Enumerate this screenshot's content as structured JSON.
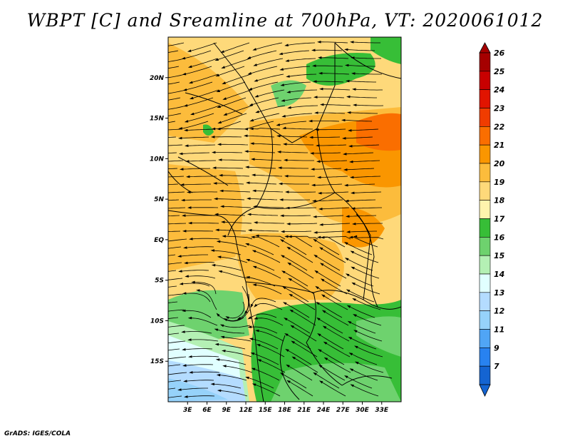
{
  "title": "WBPT [C] and Sreamline at 700hPa, VT: 2020061012",
  "credit": "GrADS: IGES/COLA",
  "map": {
    "lat_range": [
      -20,
      25
    ],
    "lon_range": [
      0,
      36
    ],
    "lat_ticks": [
      {
        "value": 20,
        "label": "20N"
      },
      {
        "value": 15,
        "label": "15N"
      },
      {
        "value": 10,
        "label": "10N"
      },
      {
        "value": 5,
        "label": "5N"
      },
      {
        "value": 0,
        "label": "EQ"
      },
      {
        "value": -5,
        "label": "5S"
      },
      {
        "value": -10,
        "label": "10S"
      },
      {
        "value": -15,
        "label": "15S"
      }
    ],
    "lon_ticks": [
      {
        "value": 3,
        "label": "3E"
      },
      {
        "value": 6,
        "label": "6E"
      },
      {
        "value": 9,
        "label": "9E"
      },
      {
        "value": 12,
        "label": "12E"
      },
      {
        "value": 15,
        "label": "15E"
      },
      {
        "value": 18,
        "label": "18E"
      },
      {
        "value": 21,
        "label": "21E"
      },
      {
        "value": 24,
        "label": "24E"
      },
      {
        "value": 27,
        "label": "27E"
      },
      {
        "value": 30,
        "label": "30E"
      },
      {
        "value": 33,
        "label": "33E"
      }
    ]
  },
  "colorbar": {
    "levels": [
      {
        "label": "26",
        "color": "#a50000"
      },
      {
        "label": "25",
        "color": "#c80000"
      },
      {
        "label": "24",
        "color": "#e11400"
      },
      {
        "label": "23",
        "color": "#f03c00"
      },
      {
        "label": "22",
        "color": "#fa6e00"
      },
      {
        "label": "21",
        "color": "#fa9600"
      },
      {
        "label": "20",
        "color": "#fcbc3c"
      },
      {
        "label": "19",
        "color": "#fed97a"
      },
      {
        "label": "18",
        "color": "#fff4ad"
      },
      {
        "label": "17",
        "color": "#37be37"
      },
      {
        "label": "16",
        "color": "#6ed26e"
      },
      {
        "label": "15",
        "color": "#b4f0b4"
      },
      {
        "label": "14",
        "color": "#e1ffff"
      },
      {
        "label": "13",
        "color": "#b4dcff"
      },
      {
        "label": "12",
        "color": "#96d2fa"
      },
      {
        "label": "11",
        "color": "#50a5f5"
      },
      {
        "label": "9",
        "color": "#2882f0"
      },
      {
        "label": "7",
        "color": "#1464d2"
      }
    ],
    "bottom_color": "#1464d2",
    "top_color": "#a50000"
  }
}
